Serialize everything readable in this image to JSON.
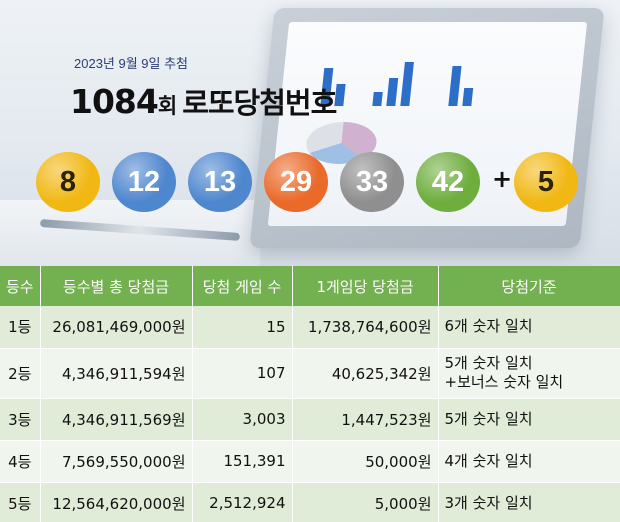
{
  "header": {
    "draw_date": "2023년 9월 9일 추첨",
    "round_number": "1084",
    "round_unit": "회",
    "title_rest": "로또당첨번호"
  },
  "winning_numbers": [
    {
      "value": "8",
      "color": "#f1b814"
    },
    {
      "value": "12",
      "color": "#4f87cf"
    },
    {
      "value": "13",
      "color": "#4f87cf"
    },
    {
      "value": "29",
      "color": "#ea6a2a"
    },
    {
      "value": "33",
      "color": "#8f8f8f"
    },
    {
      "value": "42",
      "color": "#6fae3e"
    }
  ],
  "plus_sign": "+",
  "bonus_number": {
    "value": "5",
    "color": "#f1b814"
  },
  "table": {
    "headers": [
      "등수",
      "등수별 총 당첨금",
      "당첨 게임 수",
      "1게임당 당첨금",
      "당첨기준"
    ],
    "rows": [
      {
        "rank": "1등",
        "total": "26,081,469,000원",
        "games": "15",
        "per_game": "1,738,764,600원",
        "criteria": [
          "6개 숫자 일치"
        ]
      },
      {
        "rank": "2등",
        "total": "4,346,911,594원",
        "games": "107",
        "per_game": "40,625,342원",
        "criteria": [
          "5개 숫자 일치",
          "+보너스 숫자 일치"
        ]
      },
      {
        "rank": "3등",
        "total": "4,346,911,569원",
        "games": "3,003",
        "per_game": "1,447,523원",
        "criteria": [
          "5개 숫자 일치"
        ]
      },
      {
        "rank": "4등",
        "total": "7,569,550,000원",
        "games": "151,391",
        "per_game": "50,000원",
        "criteria": [
          "4개 숫자 일치"
        ]
      },
      {
        "rank": "5등",
        "total": "12,564,620,000원",
        "games": "2,512,924",
        "per_game": "5,000원",
        "criteria": [
          "3개 숫자 일치"
        ]
      }
    ]
  },
  "colors": {
    "table_header": "#72b050",
    "row_odd": "#e0ecd8",
    "row_even": "#f0f5ed"
  }
}
